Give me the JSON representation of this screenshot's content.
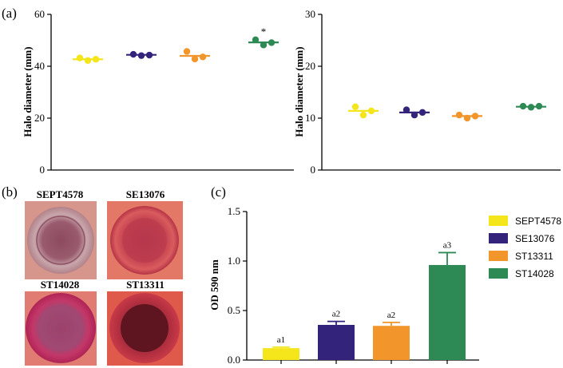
{
  "panel_labels": {
    "a": "(a)",
    "b": "(b)",
    "c": "(c)"
  },
  "colors": {
    "SEPT4578": "#f5e61c",
    "SE13076": "#34237a",
    "ST13311": "#f2952a",
    "ST14028": "#2e8a55"
  },
  "plates": {
    "labels": [
      "SEPT4578",
      "SE13076",
      "ST14028",
      "ST13311"
    ],
    "backgrounds": [
      "#d7968c",
      "#e47866",
      "#e07c72",
      "#e05a4c"
    ]
  },
  "chart_data": [
    {
      "type": "scatter",
      "ylabel": "Halo diameter (mm)",
      "ylim": [
        0,
        60
      ],
      "yticks": [
        0,
        20,
        40,
        60
      ],
      "series": [
        {
          "name": "SEPT4578",
          "points": [
            43.2,
            42.2,
            42.7
          ],
          "mean": 42.7
        },
        {
          "name": "SE13076",
          "points": [
            44.6,
            44.1,
            44.3
          ],
          "mean": 44.4
        },
        {
          "name": "ST13311",
          "points": [
            45.7,
            42.8,
            43.6
          ],
          "mean": 44.0
        },
        {
          "name": "ST14028",
          "points": [
            50.2,
            48.2,
            49.1
          ],
          "mean": 49.2
        }
      ],
      "annotations": [
        {
          "series": "ST14028",
          "text": "*"
        }
      ]
    },
    {
      "type": "scatter",
      "ylabel": "Halo diameter (mm)",
      "ylim": [
        0,
        30
      ],
      "yticks": [
        0,
        10,
        20,
        30
      ],
      "series": [
        {
          "name": "SEPT4578",
          "points": [
            12.2,
            10.6,
            11.4
          ],
          "mean": 11.4
        },
        {
          "name": "SE13076",
          "points": [
            11.6,
            10.6,
            11.1
          ],
          "mean": 11.1
        },
        {
          "name": "ST13311",
          "points": [
            10.6,
            10.0,
            10.4
          ],
          "mean": 10.4
        },
        {
          "name": "ST14028",
          "points": [
            12.3,
            12.1,
            12.3
          ],
          "mean": 12.2
        }
      ]
    },
    {
      "type": "bar",
      "ylabel": "OD 590 nm",
      "ylim": [
        0,
        1.5
      ],
      "yticks": [
        "0.0",
        "0.5",
        "1.0",
        "1.5"
      ],
      "categories": [
        "SEPT4578",
        "SE13076",
        "ST13311",
        "ST14028"
      ],
      "values": [
        0.12,
        0.355,
        0.345,
        0.96
      ],
      "errors": [
        0.01,
        0.035,
        0.035,
        0.125
      ],
      "labels": [
        "a1",
        "a2",
        "a2",
        "a3"
      ],
      "legend": [
        "SEPT4578",
        "SE13076",
        "ST13311",
        "ST14028"
      ]
    }
  ]
}
